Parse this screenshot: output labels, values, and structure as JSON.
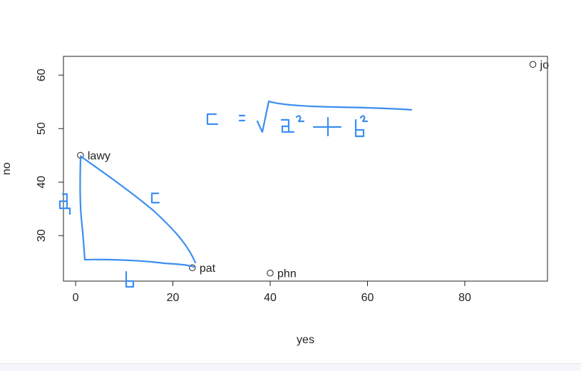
{
  "chart_data": {
    "type": "scatter",
    "title": "",
    "xlabel": "yes",
    "ylabel": "no",
    "xlim": [
      -2.5,
      97
    ],
    "ylim": [
      21.5,
      63.5
    ],
    "x_ticks": [
      0,
      20,
      40,
      60,
      80
    ],
    "y_ticks": [
      30,
      40,
      50,
      60
    ],
    "grid": false,
    "legend": "none",
    "points": [
      {
        "label": "lawy",
        "x": 1,
        "y": 45
      },
      {
        "label": "pat",
        "x": 24,
        "y": 24
      },
      {
        "label": "phn",
        "x": 40,
        "y": 23
      },
      {
        "label": "jo",
        "x": 94,
        "y": 62
      }
    ],
    "ink_color": "#3b8ff0"
  }
}
